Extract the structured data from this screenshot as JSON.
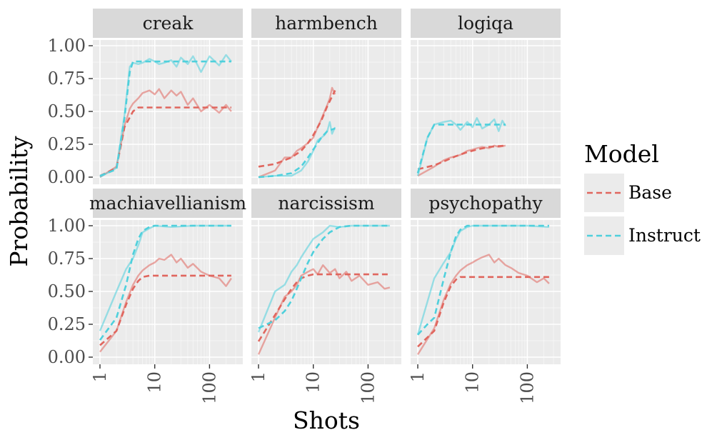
{
  "chart_data": {
    "type": "line",
    "title": "",
    "xlabel": "Shots",
    "ylabel": "Probability",
    "x_scale": "log10",
    "xlim": [
      1,
      300
    ],
    "ylim": [
      0,
      1
    ],
    "x_ticks": [
      1,
      10,
      100
    ],
    "x_tick_labels": [
      "1",
      "10",
      "100"
    ],
    "y_ticks": [
      0,
      0.25,
      0.5,
      0.75,
      1
    ],
    "y_tick_labels": [
      "0.00",
      "0.25",
      "0.50",
      "0.75",
      "1.00"
    ],
    "legend": {
      "title": "Model",
      "position": "right",
      "entries": [
        {
          "name": "Base",
          "color": "#E0665E"
        },
        {
          "name": "Instruct",
          "color": "#4FD0DC"
        }
      ]
    },
    "colors": {
      "panel_bg": "#EBEBEB",
      "strip_bg": "#D9D9D9",
      "grid_major": "#FFFFFF",
      "base": "#E0665E",
      "instruct": "#4FD0DC"
    },
    "panels": [
      {
        "label": "creak",
        "series": [
          {
            "name": "Base",
            "style": "fit",
            "x": [
              1,
              2,
              2.8,
              4,
              5,
              8,
              20,
              50,
              100,
              250
            ],
            "y": [
              0.01,
              0.07,
              0.38,
              0.5,
              0.53,
              0.53,
              0.53,
              0.53,
              0.53,
              0.53
            ]
          },
          {
            "name": "Instruct",
            "style": "fit",
            "x": [
              1,
              2,
              2.8,
              3.5,
              4,
              6,
              10,
              30,
              100,
              250
            ],
            "y": [
              0.01,
              0.06,
              0.45,
              0.8,
              0.88,
              0.88,
              0.88,
              0.88,
              0.88,
              0.88
            ]
          },
          {
            "name": "Base",
            "style": "observed",
            "x": [
              1,
              2,
              2.8,
              3.5,
              4,
              5,
              6,
              8,
              10,
              12,
              15,
              20,
              25,
              30,
              40,
              50,
              70,
              100,
              150,
              200,
              250
            ],
            "y": [
              0,
              0.08,
              0.39,
              0.52,
              0.56,
              0.6,
              0.64,
              0.66,
              0.63,
              0.67,
              0.6,
              0.66,
              0.62,
              0.65,
              0.55,
              0.6,
              0.5,
              0.55,
              0.49,
              0.55,
              0.5
            ]
          },
          {
            "name": "Instruct",
            "style": "observed",
            "x": [
              1,
              2,
              2.8,
              3.5,
              4,
              5,
              6,
              8,
              10,
              12,
              15,
              20,
              25,
              30,
              40,
              50,
              70,
              100,
              150,
              200,
              250
            ],
            "y": [
              0,
              0.07,
              0.47,
              0.84,
              0.87,
              0.86,
              0.87,
              0.9,
              0.88,
              0.86,
              0.87,
              0.89,
              0.84,
              0.91,
              0.86,
              0.92,
              0.8,
              0.92,
              0.85,
              0.93,
              0.88
            ]
          }
        ]
      },
      {
        "label": "harmbench",
        "series": [
          {
            "name": "Base",
            "style": "fit",
            "x": [
              1,
              2,
              4,
              6,
              8,
              10,
              14,
              18,
              25
            ],
            "y": [
              0.08,
              0.1,
              0.15,
              0.2,
              0.26,
              0.32,
              0.43,
              0.54,
              0.66
            ]
          },
          {
            "name": "Instruct",
            "style": "fit",
            "x": [
              1,
              2,
              4,
              6,
              8,
              10,
              14,
              18,
              25
            ],
            "y": [
              0,
              0.01,
              0.03,
              0.08,
              0.15,
              0.21,
              0.3,
              0.35,
              0.37
            ]
          },
          {
            "name": "Base",
            "style": "observed",
            "x": [
              1,
              2,
              3,
              4,
              5,
              6,
              8,
              10,
              12,
              14,
              16,
              18,
              20,
              22,
              25
            ],
            "y": [
              0,
              0.05,
              0.15,
              0.15,
              0.2,
              0.22,
              0.26,
              0.3,
              0.38,
              0.44,
              0.5,
              0.55,
              0.6,
              0.68,
              0.63
            ]
          },
          {
            "name": "Instruct",
            "style": "observed",
            "x": [
              1,
              2,
              4,
              6,
              8,
              10,
              12,
              14,
              16,
              18,
              20,
              22,
              25
            ],
            "y": [
              0,
              0.01,
              0.01,
              0.05,
              0.12,
              0.2,
              0.28,
              0.3,
              0.32,
              0.35,
              0.42,
              0.33,
              0.38
            ]
          }
        ]
      },
      {
        "label": "logiqa",
        "series": [
          {
            "name": "Base",
            "style": "fit",
            "x": [
              1,
              2,
              3,
              5,
              8,
              12,
              20,
              40
            ],
            "y": [
              0.06,
              0.09,
              0.12,
              0.16,
              0.19,
              0.21,
              0.23,
              0.24
            ]
          },
          {
            "name": "Instruct",
            "style": "fit",
            "x": [
              1,
              1.5,
              2,
              3,
              5,
              10,
              20,
              40
            ],
            "y": [
              0.03,
              0.3,
              0.4,
              0.4,
              0.4,
              0.4,
              0.4,
              0.4
            ]
          },
          {
            "name": "Base",
            "style": "observed",
            "x": [
              1,
              2,
              3,
              4,
              5,
              6,
              8,
              10,
              12,
              15,
              20,
              25,
              30,
              40
            ],
            "y": [
              0.01,
              0.08,
              0.13,
              0.15,
              0.16,
              0.17,
              0.2,
              0.21,
              0.22,
              0.23,
              0.22,
              0.24,
              0.23,
              0.24
            ]
          },
          {
            "name": "Instruct",
            "style": "observed",
            "x": [
              1,
              1.5,
              2,
              3,
              4,
              5,
              6,
              8,
              10,
              12,
              15,
              20,
              25,
              30,
              35,
              40
            ],
            "y": [
              0.01,
              0.3,
              0.4,
              0.42,
              0.43,
              0.4,
              0.36,
              0.42,
              0.38,
              0.45,
              0.37,
              0.4,
              0.44,
              0.35,
              0.43,
              0.39
            ]
          }
        ]
      },
      {
        "label": "machiavellianism",
        "series": [
          {
            "name": "Base",
            "style": "fit",
            "x": [
              1,
              2,
              3,
              4,
              5,
              6,
              8,
              10,
              20,
              50,
              100,
              250
            ],
            "y": [
              0.09,
              0.2,
              0.4,
              0.52,
              0.58,
              0.61,
              0.62,
              0.62,
              0.62,
              0.62,
              0.62,
              0.62
            ]
          },
          {
            "name": "Instruct",
            "style": "fit",
            "x": [
              1,
              2,
              3,
              4,
              5,
              6,
              8,
              10,
              20,
              50,
              100,
              250
            ],
            "y": [
              0.13,
              0.3,
              0.55,
              0.78,
              0.9,
              0.96,
              0.99,
              1,
              1,
              1,
              1,
              1
            ]
          },
          {
            "name": "Base",
            "style": "observed",
            "x": [
              1,
              2,
              3,
              4,
              5,
              6,
              8,
              10,
              12,
              15,
              20,
              25,
              30,
              40,
              50,
              70,
              100,
              150,
              200,
              250
            ],
            "y": [
              0.04,
              0.2,
              0.42,
              0.55,
              0.62,
              0.66,
              0.7,
              0.72,
              0.75,
              0.74,
              0.78,
              0.72,
              0.75,
              0.68,
              0.71,
              0.65,
              0.62,
              0.6,
              0.54,
              0.6
            ]
          },
          {
            "name": "Instruct",
            "style": "observed",
            "x": [
              1,
              2,
              3,
              4,
              5,
              6,
              8,
              10,
              20,
              50,
              100,
              250
            ],
            "y": [
              0.2,
              0.5,
              0.67,
              0.75,
              0.85,
              0.95,
              0.98,
              1,
              0.99,
              1,
              1,
              1
            ]
          }
        ]
      },
      {
        "label": "narcissism",
        "series": [
          {
            "name": "Base",
            "style": "fit",
            "x": [
              1,
              2,
              3,
              4,
              5,
              6,
              8,
              10,
              20,
              50,
              100,
              250
            ],
            "y": [
              0.12,
              0.32,
              0.44,
              0.52,
              0.57,
              0.6,
              0.62,
              0.63,
              0.63,
              0.63,
              0.63,
              0.63
            ]
          },
          {
            "name": "Instruct",
            "style": "fit",
            "x": [
              1,
              2,
              3,
              4,
              5,
              6,
              8,
              10,
              15,
              20,
              30,
              50,
              100,
              250
            ],
            "y": [
              0.22,
              0.28,
              0.35,
              0.43,
              0.52,
              0.6,
              0.72,
              0.8,
              0.9,
              0.95,
              0.99,
              1,
              1,
              1
            ]
          },
          {
            "name": "Base",
            "style": "observed",
            "x": [
              1,
              2,
              3,
              4,
              5,
              6,
              8,
              10,
              12,
              15,
              20,
              25,
              30,
              40,
              50,
              70,
              100,
              150,
              200,
              250
            ],
            "y": [
              0.02,
              0.3,
              0.46,
              0.5,
              0.55,
              0.62,
              0.65,
              0.67,
              0.63,
              0.7,
              0.64,
              0.67,
              0.6,
              0.65,
              0.58,
              0.62,
              0.55,
              0.57,
              0.52,
              0.53
            ]
          },
          {
            "name": "Instruct",
            "style": "observed",
            "x": [
              1,
              2,
              3,
              4,
              5,
              6,
              8,
              10,
              15,
              20,
              30,
              50,
              100,
              250
            ],
            "y": [
              0.19,
              0.5,
              0.55,
              0.65,
              0.7,
              0.76,
              0.84,
              0.9,
              0.95,
              1,
              0.99,
              1,
              1,
              1
            ]
          }
        ]
      },
      {
        "label": "psychopathy",
        "series": [
          {
            "name": "Base",
            "style": "fit",
            "x": [
              1,
              2,
              3,
              4,
              5,
              6,
              8,
              10,
              20,
              50,
              100,
              250
            ],
            "y": [
              0.08,
              0.2,
              0.42,
              0.54,
              0.59,
              0.61,
              0.61,
              0.61,
              0.61,
              0.61,
              0.61,
              0.61
            ]
          },
          {
            "name": "Instruct",
            "style": "fit",
            "x": [
              1,
              1.5,
              2,
              3,
              4,
              5,
              6,
              8,
              10,
              20,
              50,
              100,
              250
            ],
            "y": [
              0.17,
              0.25,
              0.3,
              0.6,
              0.8,
              0.92,
              0.97,
              1,
              1,
              1,
              1,
              1,
              1
            ]
          },
          {
            "name": "Base",
            "style": "observed",
            "x": [
              1,
              2,
              3,
              4,
              5,
              6,
              8,
              10,
              12,
              15,
              20,
              25,
              30,
              40,
              50,
              70,
              100,
              150,
              200,
              250
            ],
            "y": [
              0.02,
              0.22,
              0.44,
              0.56,
              0.62,
              0.66,
              0.7,
              0.72,
              0.74,
              0.76,
              0.78,
              0.72,
              0.75,
              0.7,
              0.68,
              0.64,
              0.62,
              0.57,
              0.6,
              0.56
            ]
          },
          {
            "name": "Instruct",
            "style": "observed",
            "x": [
              1,
              2,
              3,
              4,
              5,
              6,
              8,
              10,
              20,
              50,
              100,
              250
            ],
            "y": [
              0.17,
              0.6,
              0.72,
              0.8,
              0.9,
              0.96,
              0.99,
              1,
              1,
              1,
              1,
              0.99
            ]
          }
        ]
      }
    ]
  }
}
